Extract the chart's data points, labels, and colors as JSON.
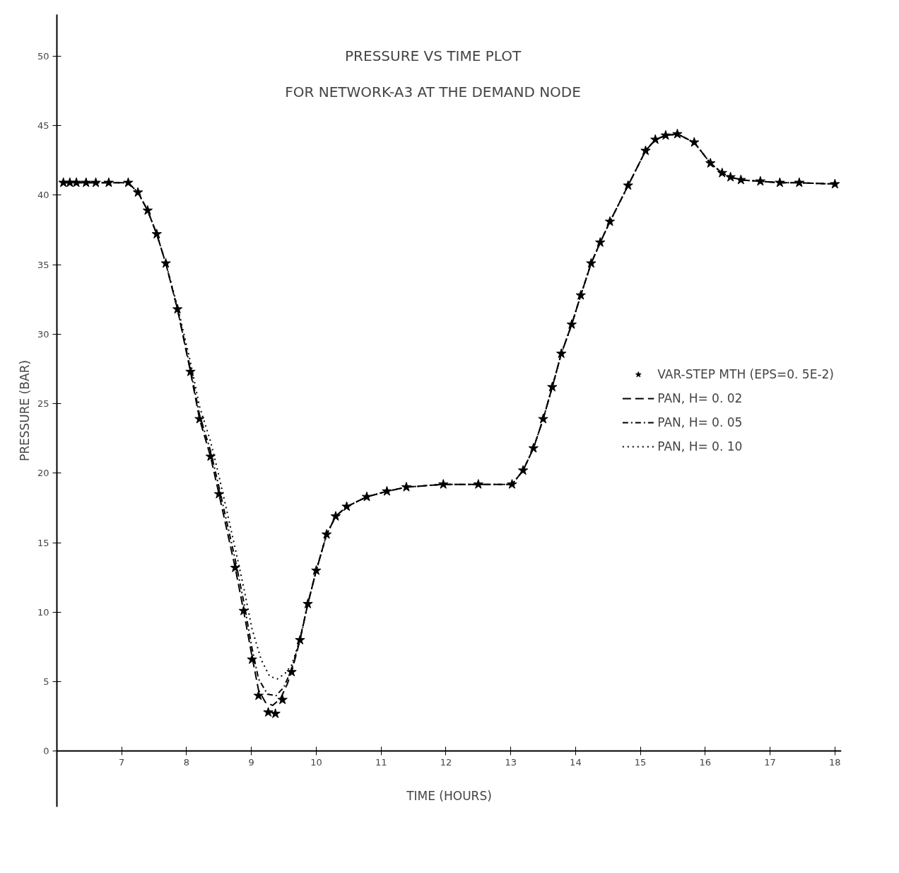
{
  "chart_data": {
    "type": "line",
    "title": "PRESSURE VS TIME PLOT",
    "subtitle": "FOR NETWORK-A3 AT THE DEMAND NODE",
    "xlabel": "TIME (HOURS)",
    "ylabel": "PRESSURE (BAR)",
    "xlim": [
      6,
      18.1
    ],
    "ylim": [
      -4,
      53
    ],
    "xticks": [
      7,
      8,
      9,
      10,
      11,
      12,
      13,
      14,
      15,
      16,
      17,
      18
    ],
    "yticks": [
      0,
      5,
      10,
      15,
      20,
      25,
      30,
      35,
      40,
      45,
      50
    ],
    "grid": false,
    "legend": "right",
    "series": [
      {
        "name": "VAR-STEP MTH (EPS=0. 5E-2)",
        "type": "scatter",
        "marker": "star",
        "color": "#000000",
        "x": [
          6.1,
          6.2,
          6.3,
          6.45,
          6.6,
          6.8,
          7.1,
          7.25,
          7.4,
          7.54,
          7.68,
          7.86,
          8.06,
          8.2,
          8.37,
          8.5,
          8.75,
          8.88,
          9.01,
          9.11,
          9.26,
          9.37,
          9.48,
          9.62,
          9.75,
          9.87,
          10.0,
          10.16,
          10.3,
          10.47,
          10.78,
          11.09,
          11.39,
          11.96,
          12.5,
          13.02,
          13.19,
          13.35,
          13.5,
          13.64,
          13.78,
          13.94,
          14.08,
          14.24,
          14.38,
          14.53,
          14.81,
          15.08,
          15.23,
          15.39,
          15.57,
          15.83,
          16.08,
          16.26,
          16.39,
          16.55,
          16.85,
          17.15,
          17.45,
          18.0
        ],
        "values": [
          40.9,
          40.9,
          40.9,
          40.9,
          40.9,
          40.9,
          40.9,
          40.2,
          38.9,
          37.2,
          35.1,
          31.8,
          27.3,
          23.9,
          21.2,
          18.5,
          13.2,
          10.1,
          6.6,
          4.0,
          2.8,
          2.7,
          3.7,
          5.7,
          8.0,
          10.6,
          13.0,
          15.6,
          16.9,
          17.6,
          18.3,
          18.7,
          19.0,
          19.2,
          19.2,
          19.2,
          20.2,
          21.8,
          23.9,
          26.2,
          28.6,
          30.7,
          32.8,
          35.1,
          36.6,
          38.1,
          40.7,
          43.2,
          44.0,
          44.3,
          44.4,
          43.8,
          42.3,
          41.6,
          41.3,
          41.1,
          41.0,
          40.9,
          40.9,
          40.8
        ]
      },
      {
        "name": "PAN, H= 0. 02",
        "line_style": "dashed",
        "color": "#000000",
        "x": [
          6.1,
          7.1,
          7.25,
          7.4,
          7.54,
          7.68,
          7.86,
          8.06,
          8.2,
          8.37,
          8.5,
          8.75,
          8.88,
          9.01,
          9.11,
          9.22,
          9.33,
          9.45,
          9.55,
          9.62,
          9.75,
          9.87,
          10.0,
          10.16,
          10.3,
          10.47,
          10.78,
          11.09,
          11.39,
          11.96,
          12.5,
          13.02,
          13.19,
          13.35,
          13.5,
          13.64,
          13.78,
          13.94,
          14.08,
          14.24,
          14.38,
          14.53,
          14.81,
          15.08,
          15.23,
          15.39,
          15.57,
          15.83,
          16.08,
          16.26,
          16.39,
          16.55,
          16.85,
          17.15,
          17.45,
          18.0
        ],
        "values": [
          40.9,
          40.9,
          40.2,
          38.9,
          37.2,
          35.1,
          31.8,
          27.3,
          23.9,
          21.2,
          18.5,
          13.2,
          10.1,
          6.8,
          4.4,
          3.5,
          3.3,
          3.8,
          4.8,
          5.7,
          8.0,
          10.6,
          13.0,
          15.6,
          16.9,
          17.6,
          18.3,
          18.7,
          19.0,
          19.2,
          19.2,
          19.2,
          20.2,
          21.8,
          23.9,
          26.2,
          28.6,
          30.7,
          32.8,
          35.1,
          36.6,
          38.1,
          40.7,
          43.2,
          44.0,
          44.3,
          44.4,
          43.8,
          42.3,
          41.6,
          41.3,
          41.1,
          41.0,
          40.9,
          40.9,
          40.8
        ]
      },
      {
        "name": "PAN, H= 0. 05",
        "line_style": "dashdot",
        "color": "#000000",
        "x": [
          6.1,
          7.1,
          7.25,
          7.4,
          7.54,
          7.68,
          7.86,
          8.06,
          8.2,
          8.37,
          8.5,
          8.75,
          8.88,
          9.01,
          9.11,
          9.25,
          9.38,
          9.5,
          9.62,
          9.75,
          9.87,
          10.0,
          10.16,
          10.3,
          10.47,
          10.78,
          11.09,
          11.39,
          11.96,
          12.5,
          13.02,
          13.19,
          13.35,
          13.5,
          13.64,
          13.78,
          13.94,
          14.08,
          14.24,
          14.38,
          14.53,
          14.81,
          15.08,
          15.23,
          15.39,
          15.57,
          15.83,
          16.08,
          16.26,
          16.39,
          16.55,
          16.85,
          17.15,
          17.45,
          18.0
        ],
        "values": [
          40.9,
          40.9,
          40.2,
          38.9,
          37.2,
          35.1,
          31.8,
          27.5,
          24.2,
          21.6,
          19.0,
          13.8,
          10.8,
          7.4,
          5.2,
          4.1,
          4.0,
          4.6,
          5.9,
          8.1,
          10.6,
          13.0,
          15.6,
          16.9,
          17.6,
          18.3,
          18.7,
          19.0,
          19.2,
          19.2,
          19.2,
          20.2,
          21.8,
          23.9,
          26.2,
          28.6,
          30.7,
          32.8,
          35.1,
          36.6,
          38.1,
          40.7,
          43.2,
          44.0,
          44.3,
          44.4,
          43.8,
          42.3,
          41.6,
          41.3,
          41.1,
          41.0,
          40.9,
          40.9,
          40.8
        ]
      },
      {
        "name": "PAN, H= 0. 10",
        "line_style": "dotted",
        "color": "#000000",
        "x": [
          6.1,
          7.1,
          7.25,
          7.4,
          7.54,
          7.68,
          7.86,
          8.06,
          8.2,
          8.37,
          8.5,
          8.75,
          8.88,
          9.01,
          9.15,
          9.28,
          9.4,
          9.52,
          9.62,
          9.75,
          9.87,
          10.0,
          10.16,
          10.3,
          10.47,
          10.78,
          11.09,
          11.39,
          11.96,
          12.5,
          13.02,
          13.19,
          13.35,
          13.5,
          13.64,
          13.78,
          13.94,
          14.08,
          14.24,
          14.38,
          14.53,
          14.81,
          15.08,
          15.23,
          15.39,
          15.57,
          15.83,
          16.08,
          16.26,
          16.39,
          16.55,
          16.85,
          17.15,
          17.45,
          18.0
        ],
        "values": [
          40.9,
          40.9,
          40.2,
          38.9,
          37.2,
          35.1,
          32.0,
          28.0,
          24.8,
          22.3,
          19.8,
          14.6,
          11.8,
          8.8,
          6.6,
          5.4,
          5.2,
          5.6,
          6.2,
          8.0,
          10.6,
          13.0,
          15.6,
          16.9,
          17.6,
          18.3,
          18.7,
          19.0,
          19.2,
          19.2,
          19.2,
          20.2,
          21.8,
          23.9,
          26.2,
          28.6,
          30.7,
          32.8,
          35.1,
          36.6,
          38.1,
          40.7,
          43.2,
          44.0,
          44.3,
          44.4,
          43.8,
          42.3,
          41.6,
          41.3,
          41.1,
          41.0,
          40.9,
          40.9,
          40.8
        ]
      }
    ]
  }
}
